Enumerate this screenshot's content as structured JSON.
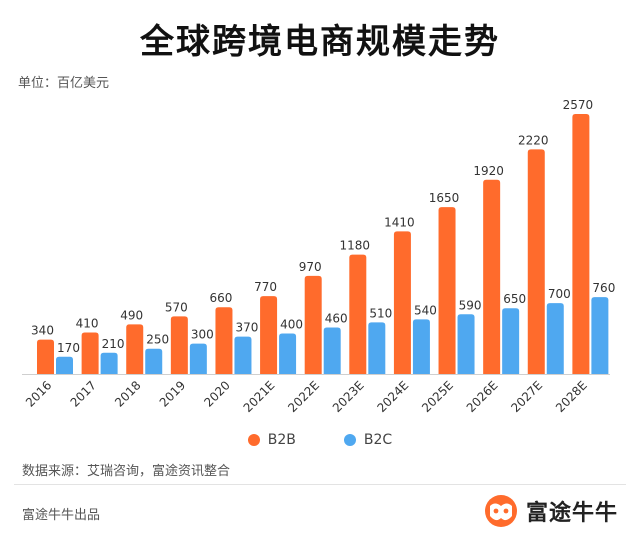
{
  "title": "全球跨境电商规模走势",
  "unit_label": "单位：百亿美元",
  "source_label": "数据来源：艾瑞咨询，富途资讯整合",
  "credit_label": "富途牛牛出品",
  "brand_name": "富途牛牛",
  "colors": {
    "b2b": "#FF6B2C",
    "b2c": "#4FA8F0"
  },
  "chart_data": {
    "type": "bar",
    "categories": [
      "2016",
      "2017",
      "2018",
      "2019",
      "2020",
      "2021E",
      "2022E",
      "2023E",
      "2024E",
      "2025E",
      "2026E",
      "2027E",
      "2028E"
    ],
    "series": [
      {
        "name": "B2B",
        "values": [
          340,
          410,
          490,
          570,
          660,
          770,
          970,
          1180,
          1410,
          1650,
          1920,
          2220,
          2570
        ]
      },
      {
        "name": "B2C",
        "values": [
          170,
          210,
          250,
          300,
          370,
          400,
          460,
          510,
          540,
          590,
          650,
          700,
          760
        ]
      }
    ],
    "legend_position": "bottom",
    "grid": false
  }
}
